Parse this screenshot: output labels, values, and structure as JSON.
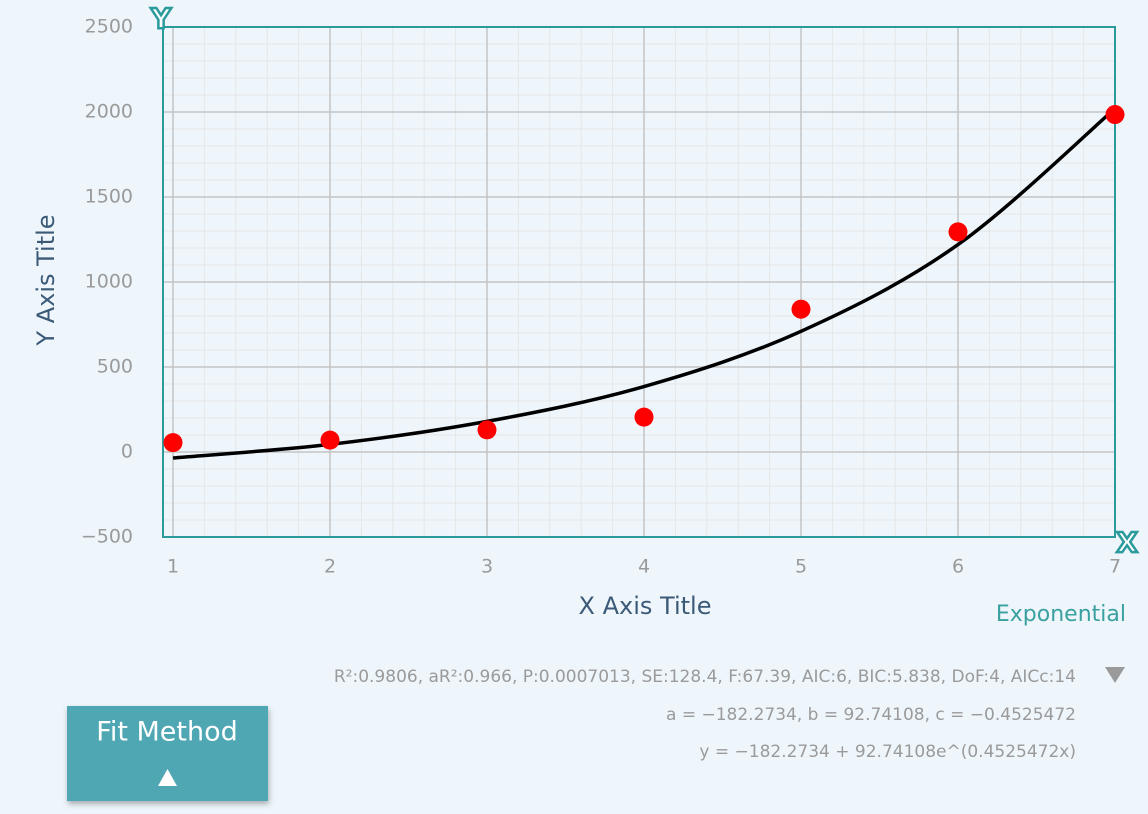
{
  "chart_data": {
    "type": "scatter",
    "x_label": "X Axis Title",
    "y_label": "Y Axis Title",
    "x_badge": "X",
    "y_badge": "Y",
    "x": [
      1,
      2,
      3,
      4,
      5,
      6,
      7
    ],
    "series": [
      {
        "color": "#ff0000",
        "values": [
          55,
          70,
          130,
          205,
          840,
          1295,
          1985
        ]
      },
      {
        "color": "#000000",
        "style": "line",
        "values": [
          -35,
          45,
          180,
          385,
          710,
          1220,
          2020
        ]
      }
    ],
    "xlim": [
      1,
      7
    ],
    "xticks": [
      1,
      2,
      3,
      4,
      5,
      6,
      7
    ],
    "ylim": [
      -500,
      2500
    ],
    "yticks": [
      {
        "value": -500,
        "label": "−500"
      },
      0,
      500,
      1000,
      1500,
      2000,
      2500
    ],
    "grid": true,
    "minor_grid_divisions": 5
  },
  "fit": {
    "name": "Exponential",
    "stats": "R²:0.9806, aR²:0.966, P:0.0007013, SE:128.4, F:67.39, AIC:6, BIC:5.838, DoF:4, AICc:14",
    "parameters": "a = −182.2734, b = 92.74108, c = −0.4525472",
    "equation": "y = −182.2734 + 92.74108e^(0.4525472x)"
  },
  "button": {
    "label": "Fit Method"
  }
}
